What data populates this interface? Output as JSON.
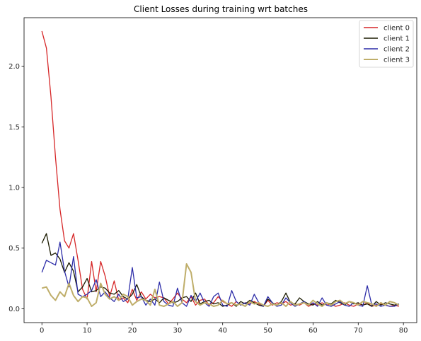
{
  "chart_data": {
    "type": "line",
    "title": "Client Losses during training wrt batches",
    "xlabel": "",
    "ylabel": "",
    "xlim": [
      -3.95,
      82.95
    ],
    "ylim": [
      -0.114,
      2.4
    ],
    "xticks": [
      0,
      10,
      20,
      30,
      40,
      50,
      60,
      70,
      80
    ],
    "yticks": [
      0.0,
      0.5,
      1.0,
      1.5,
      2.0
    ],
    "ytick_labels": [
      "0.0",
      "0.5",
      "1.0",
      "1.5",
      "2.0"
    ],
    "grid": false,
    "legend_position": "top-right",
    "x": [
      0,
      1,
      2,
      3,
      4,
      5,
      6,
      7,
      8,
      9,
      10,
      11,
      12,
      13,
      14,
      15,
      16,
      17,
      18,
      19,
      20,
      21,
      22,
      23,
      24,
      25,
      26,
      27,
      28,
      29,
      30,
      31,
      32,
      33,
      34,
      35,
      36,
      37,
      38,
      39,
      40,
      41,
      42,
      43,
      44,
      45,
      46,
      47,
      48,
      49,
      50,
      51,
      52,
      53,
      54,
      55,
      56,
      57,
      58,
      59,
      60,
      61,
      62,
      63,
      64,
      65,
      66,
      67,
      68,
      69,
      70,
      71,
      72,
      73,
      74,
      75,
      76,
      77,
      78,
      79
    ],
    "series": [
      {
        "name": "client 0",
        "color": "#d62728",
        "values": [
          2.29,
          2.15,
          1.75,
          1.25,
          0.82,
          0.56,
          0.5,
          0.62,
          0.4,
          0.16,
          0.08,
          0.39,
          0.14,
          0.39,
          0.27,
          0.1,
          0.23,
          0.07,
          0.09,
          0.05,
          0.16,
          0.07,
          0.14,
          0.08,
          0.12,
          0.09,
          0.1,
          0.09,
          0.04,
          0.08,
          0.13,
          0.08,
          0.05,
          0.1,
          0.03,
          0.07,
          0.08,
          0.03,
          0.05,
          0.1,
          0.06,
          0.04,
          0.02,
          0.06,
          0.03,
          0.05,
          0.04,
          0.06,
          0.04,
          0.02,
          0.07,
          0.03,
          0.05,
          0.04,
          0.06,
          0.03,
          0.04,
          0.03,
          0.05,
          0.02,
          0.04,
          0.03,
          0.05,
          0.03,
          0.04,
          0.02,
          0.03,
          0.05,
          0.03,
          0.02,
          0.04,
          0.03,
          0.05,
          0.02,
          0.03,
          0.04,
          0.03,
          0.02,
          0.03,
          0.02
        ]
      },
      {
        "name": "client 1",
        "color": "#1a1a00",
        "values": [
          0.54,
          0.62,
          0.44,
          0.46,
          0.41,
          0.3,
          0.38,
          0.31,
          0.14,
          0.18,
          0.25,
          0.14,
          0.15,
          0.18,
          0.17,
          0.13,
          0.12,
          0.15,
          0.1,
          0.08,
          0.12,
          0.2,
          0.1,
          0.07,
          0.06,
          0.08,
          0.05,
          0.09,
          0.07,
          0.05,
          0.06,
          0.09,
          0.1,
          0.06,
          0.13,
          0.04,
          0.06,
          0.07,
          0.04,
          0.05,
          0.02,
          0.03,
          0.05,
          0.02,
          0.06,
          0.04,
          0.07,
          0.05,
          0.03,
          0.02,
          0.08,
          0.05,
          0.03,
          0.06,
          0.13,
          0.05,
          0.04,
          0.09,
          0.06,
          0.04,
          0.03,
          0.06,
          0.03,
          0.05,
          0.04,
          0.07,
          0.05,
          0.03,
          0.06,
          0.04,
          0.05,
          0.03,
          0.04,
          0.02,
          0.06,
          0.03,
          0.05,
          0.04,
          0.03,
          0.04
        ]
      },
      {
        "name": "client 2",
        "color": "#2c2ca8",
        "values": [
          0.3,
          0.4,
          0.38,
          0.36,
          0.55,
          0.31,
          0.18,
          0.43,
          0.12,
          0.1,
          0.12,
          0.15,
          0.24,
          0.1,
          0.14,
          0.09,
          0.06,
          0.12,
          0.06,
          0.08,
          0.34,
          0.09,
          0.1,
          0.03,
          0.08,
          0.03,
          0.22,
          0.06,
          0.03,
          0.02,
          0.17,
          0.05,
          0.02,
          0.11,
          0.06,
          0.13,
          0.05,
          0.02,
          0.1,
          0.13,
          0.03,
          0.02,
          0.15,
          0.06,
          0.03,
          0.05,
          0.03,
          0.12,
          0.05,
          0.02,
          0.1,
          0.05,
          0.02,
          0.03,
          0.09,
          0.05,
          0.02,
          0.04,
          0.06,
          0.03,
          0.05,
          0.02,
          0.09,
          0.03,
          0.02,
          0.04,
          0.06,
          0.03,
          0.02,
          0.05,
          0.03,
          0.02,
          0.19,
          0.03,
          0.04,
          0.02,
          0.03,
          0.02,
          0.02,
          0.04
        ]
      },
      {
        "name": "client 3",
        "color": "#bfae6a",
        "values": [
          0.17,
          0.18,
          0.11,
          0.07,
          0.14,
          0.1,
          0.21,
          0.11,
          0.06,
          0.1,
          0.09,
          0.02,
          0.05,
          0.21,
          0.12,
          0.08,
          0.1,
          0.07,
          0.12,
          0.1,
          0.03,
          0.06,
          0.08,
          0.07,
          0.03,
          0.16,
          0.03,
          0.02,
          0.04,
          0.06,
          0.02,
          0.05,
          0.37,
          0.3,
          0.06,
          0.03,
          0.05,
          0.04,
          0.02,
          0.03,
          0.07,
          0.04,
          0.05,
          0.03,
          0.04,
          0.02,
          0.06,
          0.04,
          0.05,
          0.03,
          0.02,
          0.04,
          0.03,
          0.05,
          0.02,
          0.06,
          0.03,
          0.04,
          0.05,
          0.03,
          0.07,
          0.04,
          0.02,
          0.05,
          0.03,
          0.06,
          0.07,
          0.04,
          0.06,
          0.05,
          0.03,
          0.06,
          0.05,
          0.04,
          0.02,
          0.05,
          0.03,
          0.06,
          0.05,
          0.03
        ]
      }
    ]
  }
}
